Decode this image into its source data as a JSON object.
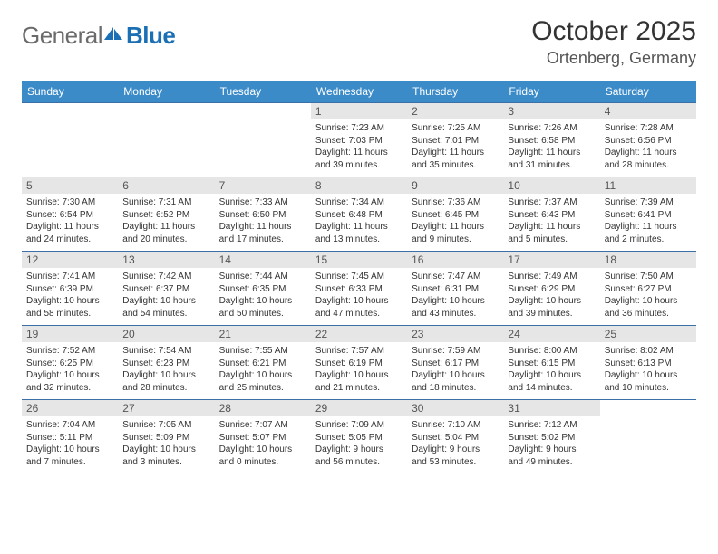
{
  "brand": {
    "text1": "General",
    "text2": "Blue",
    "icon_color": "#1a6fb5"
  },
  "title": "October 2025",
  "location": "Ortenberg, Germany",
  "colors": {
    "header_bg": "#3b8bc9",
    "header_text": "#ffffff",
    "daynum_bg": "#e6e6e6",
    "rule": "#3b6fa8",
    "body_text": "#333333"
  },
  "day_headers": [
    "Sunday",
    "Monday",
    "Tuesday",
    "Wednesday",
    "Thursday",
    "Friday",
    "Saturday"
  ],
  "weeks": [
    [
      {
        "n": "",
        "lines": []
      },
      {
        "n": "",
        "lines": []
      },
      {
        "n": "",
        "lines": []
      },
      {
        "n": "1",
        "lines": [
          "Sunrise: 7:23 AM",
          "Sunset: 7:03 PM",
          "Daylight: 11 hours",
          "and 39 minutes."
        ]
      },
      {
        "n": "2",
        "lines": [
          "Sunrise: 7:25 AM",
          "Sunset: 7:01 PM",
          "Daylight: 11 hours",
          "and 35 minutes."
        ]
      },
      {
        "n": "3",
        "lines": [
          "Sunrise: 7:26 AM",
          "Sunset: 6:58 PM",
          "Daylight: 11 hours",
          "and 31 minutes."
        ]
      },
      {
        "n": "4",
        "lines": [
          "Sunrise: 7:28 AM",
          "Sunset: 6:56 PM",
          "Daylight: 11 hours",
          "and 28 minutes."
        ]
      }
    ],
    [
      {
        "n": "5",
        "lines": [
          "Sunrise: 7:30 AM",
          "Sunset: 6:54 PM",
          "Daylight: 11 hours",
          "and 24 minutes."
        ]
      },
      {
        "n": "6",
        "lines": [
          "Sunrise: 7:31 AM",
          "Sunset: 6:52 PM",
          "Daylight: 11 hours",
          "and 20 minutes."
        ]
      },
      {
        "n": "7",
        "lines": [
          "Sunrise: 7:33 AM",
          "Sunset: 6:50 PM",
          "Daylight: 11 hours",
          "and 17 minutes."
        ]
      },
      {
        "n": "8",
        "lines": [
          "Sunrise: 7:34 AM",
          "Sunset: 6:48 PM",
          "Daylight: 11 hours",
          "and 13 minutes."
        ]
      },
      {
        "n": "9",
        "lines": [
          "Sunrise: 7:36 AM",
          "Sunset: 6:45 PM",
          "Daylight: 11 hours",
          "and 9 minutes."
        ]
      },
      {
        "n": "10",
        "lines": [
          "Sunrise: 7:37 AM",
          "Sunset: 6:43 PM",
          "Daylight: 11 hours",
          "and 5 minutes."
        ]
      },
      {
        "n": "11",
        "lines": [
          "Sunrise: 7:39 AM",
          "Sunset: 6:41 PM",
          "Daylight: 11 hours",
          "and 2 minutes."
        ]
      }
    ],
    [
      {
        "n": "12",
        "lines": [
          "Sunrise: 7:41 AM",
          "Sunset: 6:39 PM",
          "Daylight: 10 hours",
          "and 58 minutes."
        ]
      },
      {
        "n": "13",
        "lines": [
          "Sunrise: 7:42 AM",
          "Sunset: 6:37 PM",
          "Daylight: 10 hours",
          "and 54 minutes."
        ]
      },
      {
        "n": "14",
        "lines": [
          "Sunrise: 7:44 AM",
          "Sunset: 6:35 PM",
          "Daylight: 10 hours",
          "and 50 minutes."
        ]
      },
      {
        "n": "15",
        "lines": [
          "Sunrise: 7:45 AM",
          "Sunset: 6:33 PM",
          "Daylight: 10 hours",
          "and 47 minutes."
        ]
      },
      {
        "n": "16",
        "lines": [
          "Sunrise: 7:47 AM",
          "Sunset: 6:31 PM",
          "Daylight: 10 hours",
          "and 43 minutes."
        ]
      },
      {
        "n": "17",
        "lines": [
          "Sunrise: 7:49 AM",
          "Sunset: 6:29 PM",
          "Daylight: 10 hours",
          "and 39 minutes."
        ]
      },
      {
        "n": "18",
        "lines": [
          "Sunrise: 7:50 AM",
          "Sunset: 6:27 PM",
          "Daylight: 10 hours",
          "and 36 minutes."
        ]
      }
    ],
    [
      {
        "n": "19",
        "lines": [
          "Sunrise: 7:52 AM",
          "Sunset: 6:25 PM",
          "Daylight: 10 hours",
          "and 32 minutes."
        ]
      },
      {
        "n": "20",
        "lines": [
          "Sunrise: 7:54 AM",
          "Sunset: 6:23 PM",
          "Daylight: 10 hours",
          "and 28 minutes."
        ]
      },
      {
        "n": "21",
        "lines": [
          "Sunrise: 7:55 AM",
          "Sunset: 6:21 PM",
          "Daylight: 10 hours",
          "and 25 minutes."
        ]
      },
      {
        "n": "22",
        "lines": [
          "Sunrise: 7:57 AM",
          "Sunset: 6:19 PM",
          "Daylight: 10 hours",
          "and 21 minutes."
        ]
      },
      {
        "n": "23",
        "lines": [
          "Sunrise: 7:59 AM",
          "Sunset: 6:17 PM",
          "Daylight: 10 hours",
          "and 18 minutes."
        ]
      },
      {
        "n": "24",
        "lines": [
          "Sunrise: 8:00 AM",
          "Sunset: 6:15 PM",
          "Daylight: 10 hours",
          "and 14 minutes."
        ]
      },
      {
        "n": "25",
        "lines": [
          "Sunrise: 8:02 AM",
          "Sunset: 6:13 PM",
          "Daylight: 10 hours",
          "and 10 minutes."
        ]
      }
    ],
    [
      {
        "n": "26",
        "lines": [
          "Sunrise: 7:04 AM",
          "Sunset: 5:11 PM",
          "Daylight: 10 hours",
          "and 7 minutes."
        ]
      },
      {
        "n": "27",
        "lines": [
          "Sunrise: 7:05 AM",
          "Sunset: 5:09 PM",
          "Daylight: 10 hours",
          "and 3 minutes."
        ]
      },
      {
        "n": "28",
        "lines": [
          "Sunrise: 7:07 AM",
          "Sunset: 5:07 PM",
          "Daylight: 10 hours",
          "and 0 minutes."
        ]
      },
      {
        "n": "29",
        "lines": [
          "Sunrise: 7:09 AM",
          "Sunset: 5:05 PM",
          "Daylight: 9 hours",
          "and 56 minutes."
        ]
      },
      {
        "n": "30",
        "lines": [
          "Sunrise: 7:10 AM",
          "Sunset: 5:04 PM",
          "Daylight: 9 hours",
          "and 53 minutes."
        ]
      },
      {
        "n": "31",
        "lines": [
          "Sunrise: 7:12 AM",
          "Sunset: 5:02 PM",
          "Daylight: 9 hours",
          "and 49 minutes."
        ]
      },
      {
        "n": "",
        "lines": []
      }
    ]
  ]
}
